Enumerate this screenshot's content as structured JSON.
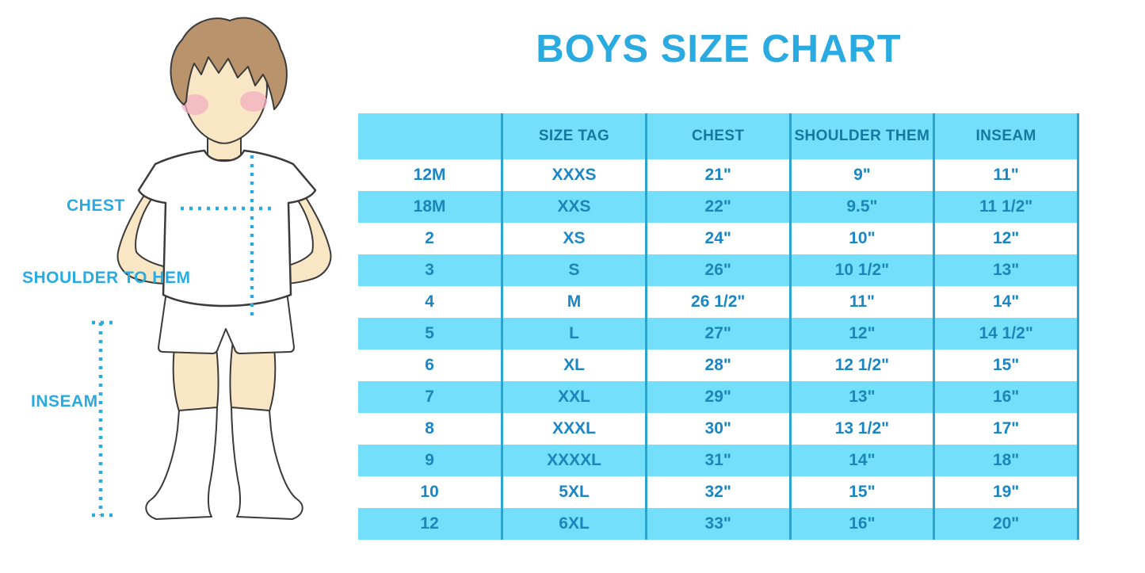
{
  "title": "BOYS SIZE CHART",
  "figure": {
    "labels": {
      "chest": "CHEST",
      "shoulder_to_hem": "SHOULDER TO HEM",
      "inseam": "INSEAM"
    }
  },
  "chart_data": {
    "type": "table",
    "title": "BOYS SIZE CHART",
    "columns": [
      "",
      "SIZE TAG",
      "CHEST",
      "SHOULDER THEM",
      "INSEAM"
    ],
    "rows": [
      [
        "12M",
        "XXXS",
        "21\"",
        "9\"",
        "11\""
      ],
      [
        "18M",
        "XXS",
        "22\"",
        "9.5\"",
        "11 1/2\""
      ],
      [
        "2",
        "XS",
        "24\"",
        "10\"",
        "12\""
      ],
      [
        "3",
        "S",
        "26\"",
        "10 1/2\"",
        "13\""
      ],
      [
        "4",
        "M",
        "26 1/2\"",
        "11\"",
        "14\""
      ],
      [
        "5",
        "L",
        "27\"",
        "12\"",
        "14 1/2\""
      ],
      [
        "6",
        "XL",
        "28\"",
        "12 1/2\"",
        "15\""
      ],
      [
        "7",
        "XXL",
        "29\"",
        "13\"",
        "16\""
      ],
      [
        "8",
        "XXXL",
        "30\"",
        "13 1/2\"",
        "17\""
      ],
      [
        "9",
        "XXXXL",
        "31\"",
        "14\"",
        "18\""
      ],
      [
        "10",
        "5XL",
        "32\"",
        "15\"",
        "19\""
      ],
      [
        "12",
        "6XL",
        "33\"",
        "16\"",
        "20\""
      ]
    ],
    "layout": {
      "header_background": "#73DFFA",
      "alternating_row_background": "#73DFFA",
      "grid": "vertical-only"
    }
  },
  "colors": {
    "accent": "#29ABE2",
    "band": "#73DFFA",
    "separator": "#2DA3CF",
    "header_text": "#14799F",
    "row_text_white": "#1B86C6",
    "row_text_cyan": "#1A87B8",
    "skin": "#F8E6C4",
    "hair": "#B9936C",
    "blush": "#F2AFC1",
    "outline": "#3B3B3B"
  }
}
